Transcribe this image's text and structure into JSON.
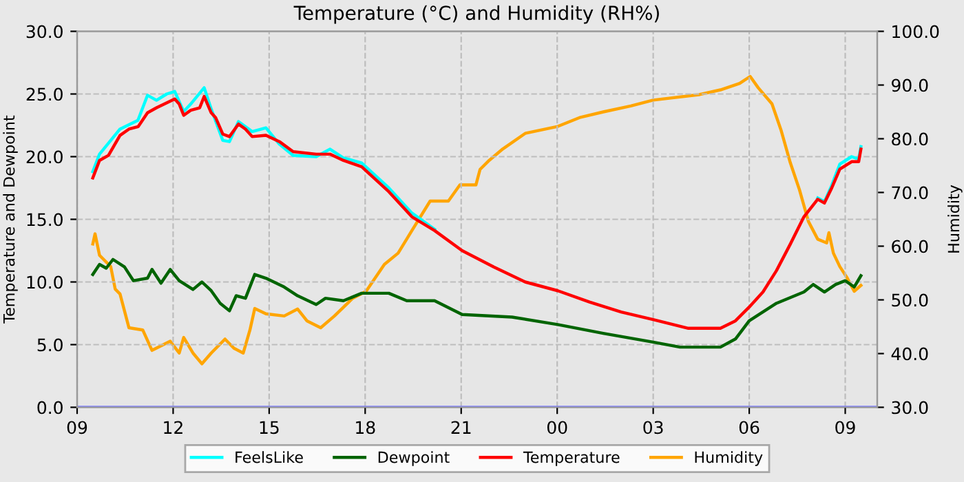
{
  "chart_data": {
    "type": "line",
    "title": "Temperature (°C) and Humidity (RH%)",
    "ylabel": "Temperature and Dewpoint",
    "y2label": "Humidity",
    "xlim": [
      9,
      34
    ],
    "xticks": [
      {
        "value": 9,
        "label": "09"
      },
      {
        "value": 12,
        "label": "12"
      },
      {
        "value": 15,
        "label": "15"
      },
      {
        "value": 18,
        "label": "18"
      },
      {
        "value": 21,
        "label": "21"
      },
      {
        "value": 24,
        "label": "00"
      },
      {
        "value": 27,
        "label": "03"
      },
      {
        "value": 30,
        "label": "06"
      },
      {
        "value": 33,
        "label": "09"
      }
    ],
    "ylim": [
      0,
      30
    ],
    "yticks": [
      {
        "value": 0,
        "label": "0.0"
      },
      {
        "value": 5,
        "label": "5.0"
      },
      {
        "value": 10,
        "label": "10.0"
      },
      {
        "value": 15,
        "label": "15.0"
      },
      {
        "value": 20,
        "label": "20.0"
      },
      {
        "value": 25,
        "label": "25.0"
      },
      {
        "value": 30,
        "label": "30.0"
      }
    ],
    "y2lim": [
      30,
      100
    ],
    "y2ticks": [
      {
        "value": 30,
        "label": "30.0"
      },
      {
        "value": 40,
        "label": "40.0"
      },
      {
        "value": 50,
        "label": "50.0"
      },
      {
        "value": 60,
        "label": "60.0"
      },
      {
        "value": 70,
        "label": "70.0"
      },
      {
        "value": 80,
        "label": "80.0"
      },
      {
        "value": 90,
        "label": "90.0"
      },
      {
        "value": 100,
        "label": "100.0"
      }
    ],
    "grid": true,
    "legend": "bottom",
    "line_style": "solid",
    "marker": "none",
    "series": [
      {
        "name": "FeelsLike",
        "color": "#00ffff",
        "x": [
          9.49,
          9.7,
          10.34,
          10.9,
          11.2,
          11.48,
          11.8,
          12.05,
          12.33,
          12.55,
          12.97,
          13.19,
          13.55,
          13.76,
          14.04,
          14.47,
          14.9,
          15.32,
          15.75,
          16.47,
          16.9,
          17.32,
          17.89,
          18.74,
          19.46,
          20.17,
          21.03,
          22.02,
          23.0,
          24.02,
          25.01,
          26.0,
          27.0,
          28.1,
          29.1,
          29.57,
          30.0,
          30.43,
          30.85,
          31.28,
          31.71,
          32.14,
          32.35,
          32.56,
          32.83,
          33.2,
          33.42,
          33.49
        ],
        "values": [
          18.8,
          20.2,
          22.2,
          22.9,
          24.9,
          24.5,
          25.0,
          25.2,
          23.6,
          24.2,
          25.5,
          23.8,
          21.3,
          21.2,
          22.8,
          22.0,
          22.3,
          21.0,
          20.1,
          20.0,
          20.6,
          19.9,
          19.5,
          17.5,
          15.5,
          14.2,
          null,
          null,
          null,
          null,
          null,
          null,
          null,
          null,
          null,
          null,
          null,
          null,
          null,
          null,
          null,
          16.7,
          16.4,
          17.6,
          19.4,
          20.0,
          19.8,
          20.8
        ]
      },
      {
        "name": "Dewpoint",
        "color": "#006400",
        "x": [
          9.49,
          9.7,
          9.91,
          10.12,
          10.48,
          10.76,
          11.2,
          11.34,
          11.62,
          11.91,
          12.19,
          12.62,
          12.9,
          13.19,
          13.47,
          13.76,
          13.97,
          14.26,
          14.55,
          14.9,
          15.47,
          15.89,
          16.47,
          16.76,
          17.32,
          17.89,
          18.74,
          19.3,
          20.17,
          21.03,
          22.59,
          24.02,
          25.44,
          27.0,
          27.84,
          29.1,
          29.57,
          30.0,
          30.85,
          31.71,
          32.0,
          32.35,
          32.7,
          33.0,
          33.28,
          33.49
        ],
        "values": [
          10.6,
          11.4,
          11.1,
          11.8,
          11.2,
          10.1,
          10.3,
          11.0,
          9.9,
          11.0,
          10.1,
          9.4,
          10.0,
          9.3,
          8.3,
          7.7,
          8.9,
          8.7,
          10.6,
          10.3,
          9.6,
          8.9,
          8.2,
          8.7,
          8.5,
          9.1,
          9.1,
          8.5,
          8.5,
          7.4,
          7.2,
          6.6,
          5.9,
          5.2,
          4.8,
          4.8,
          5.45,
          6.9,
          8.3,
          9.2,
          9.8,
          9.2,
          9.8,
          10.1,
          9.6,
          10.5
        ]
      },
      {
        "name": "Temperature",
        "color": "#ff0000",
        "x": [
          9.49,
          9.7,
          9.98,
          10.34,
          10.62,
          10.91,
          11.2,
          11.48,
          12.05,
          12.19,
          12.33,
          12.55,
          12.83,
          12.97,
          13.19,
          13.33,
          13.55,
          13.76,
          14.04,
          14.26,
          14.47,
          14.9,
          15.32,
          15.75,
          16.47,
          16.9,
          17.32,
          17.89,
          18.74,
          19.46,
          20.17,
          21.03,
          22.02,
          23.0,
          24.02,
          25.01,
          26.0,
          27.0,
          28.1,
          29.1,
          29.57,
          30.0,
          30.43,
          30.85,
          31.28,
          31.71,
          32.14,
          32.35,
          32.56,
          32.83,
          33.2,
          33.42,
          33.49
        ],
        "values": [
          18.3,
          19.7,
          20.1,
          21.7,
          22.2,
          22.4,
          23.5,
          23.9,
          24.6,
          24.2,
          23.3,
          23.7,
          23.9,
          24.8,
          23.5,
          23.1,
          21.8,
          21.6,
          22.6,
          22.2,
          21.6,
          21.7,
          21.2,
          20.4,
          20.2,
          20.2,
          19.7,
          19.2,
          17.2,
          15.2,
          14.1,
          12.5,
          11.2,
          10.0,
          9.3,
          8.4,
          7.6,
          7.0,
          6.3,
          6.3,
          6.9,
          8.0,
          9.2,
          10.9,
          13.0,
          15.2,
          16.6,
          16.3,
          17.4,
          19.0,
          19.6,
          19.6,
          20.6
        ]
      },
      {
        "name": "Humidity",
        "color": "#ffa500",
        "axis": "y2",
        "x": [
          9.49,
          9.56,
          9.7,
          10.05,
          10.19,
          10.34,
          10.62,
          11.05,
          11.34,
          11.91,
          12.19,
          12.33,
          12.62,
          12.9,
          13.19,
          13.62,
          13.9,
          14.19,
          14.4,
          14.55,
          14.9,
          15.47,
          15.89,
          16.18,
          16.61,
          17.04,
          17.61,
          18.03,
          18.6,
          19.03,
          19.46,
          20.03,
          20.6,
          20.96,
          21.46,
          21.59,
          21.88,
          22.3,
          23.0,
          24.02,
          24.73,
          25.44,
          26.3,
          27.0,
          28.43,
          29.1,
          29.7,
          30.03,
          30.28,
          30.71,
          31.0,
          31.28,
          31.57,
          31.85,
          32.14,
          32.42,
          32.49,
          32.63,
          32.83,
          33.06,
          33.28,
          33.49
        ],
        "values": [
          60.4,
          62.3,
          58.3,
          56.2,
          52.0,
          51.1,
          44.8,
          44.4,
          40.6,
          42.3,
          40.1,
          43.0,
          40.1,
          38.1,
          40.1,
          42.7,
          41.0,
          40.1,
          44.4,
          48.4,
          47.4,
          47.0,
          48.3,
          46.1,
          44.8,
          47.0,
          50.3,
          51.6,
          56.6,
          58.7,
          62.9,
          68.4,
          68.4,
          71.4,
          71.4,
          74.3,
          76.0,
          78.1,
          81.0,
          82.3,
          84.0,
          85.0,
          86.1,
          87.2,
          88.2,
          89.1,
          90.3,
          91.6,
          89.5,
          86.5,
          81.5,
          75.6,
          70.5,
          64.6,
          61.3,
          60.6,
          62.5,
          58.7,
          56.2,
          54.1,
          51.6,
          52.7
        ]
      },
      {
        "color": "#8080ff",
        "x": [
          9,
          34
        ],
        "values": [
          0,
          0
        ]
      }
    ]
  }
}
